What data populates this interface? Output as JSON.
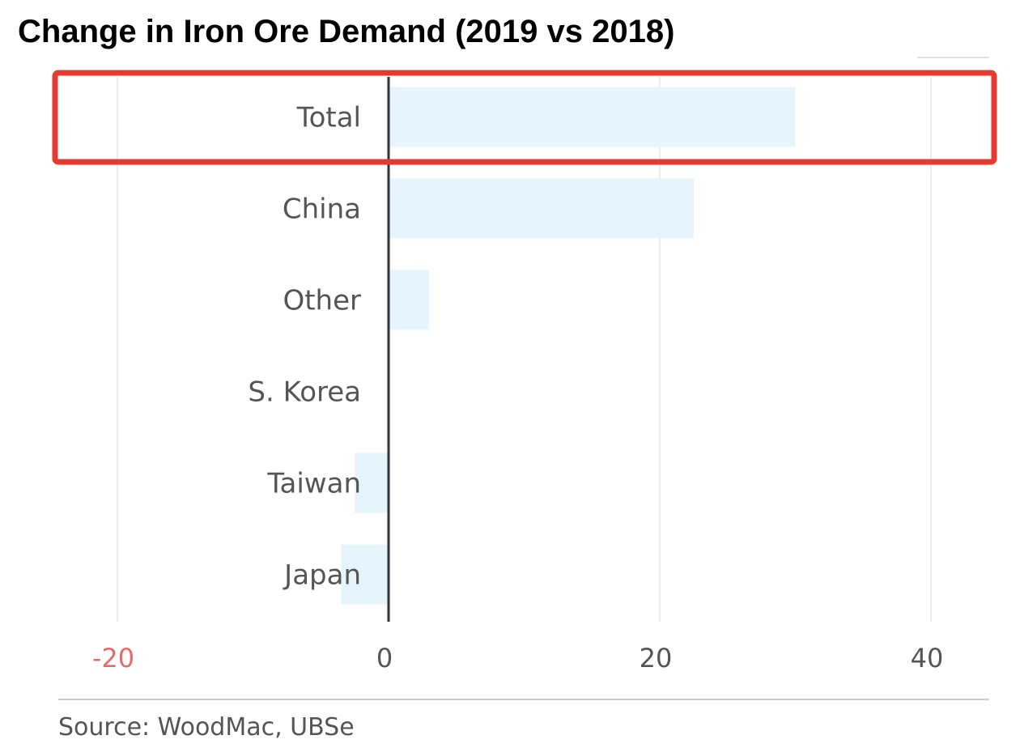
{
  "chart_data": {
    "type": "bar",
    "orientation": "horizontal",
    "title": "Change in Iron Ore Demand (2019 vs 2018)",
    "xlabel": "",
    "ylabel": "",
    "categories": [
      "Total",
      "China",
      "Other",
      "S. Korea",
      "Taiwan",
      "Japan"
    ],
    "values": [
      30,
      22.5,
      3,
      0,
      -2.5,
      -3.5
    ],
    "xlim": [
      -20,
      45
    ],
    "ticks": [
      -20,
      0,
      20,
      40
    ],
    "tick_labels": [
      "-20",
      "0",
      "20",
      "40"
    ],
    "grid": true,
    "highlight_category": "Total",
    "colors": {
      "bar": "#e6f4fb",
      "axis": "#333333",
      "grid": "#eeeeee",
      "negative_tick": "#e46b6b",
      "highlight": "#e53a2f"
    }
  },
  "source": "Source:  WoodMac, UBSe"
}
